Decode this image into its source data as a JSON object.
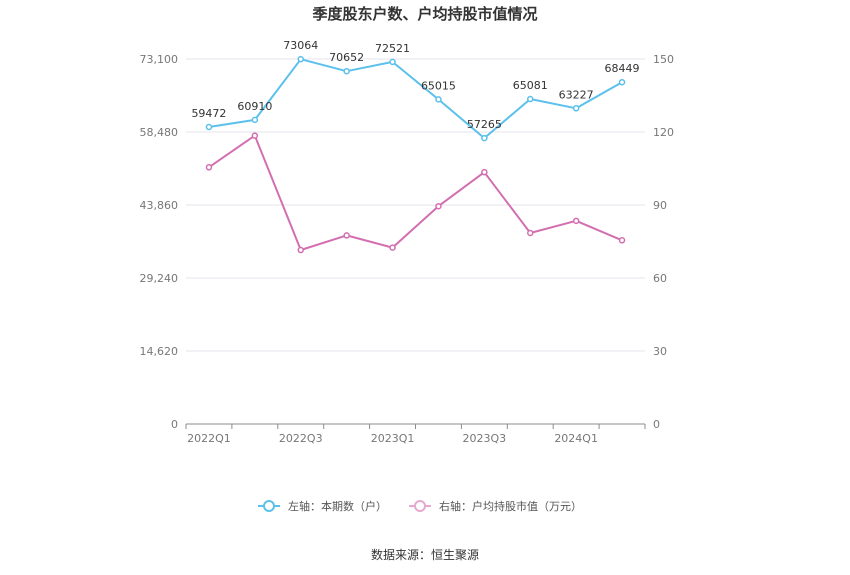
{
  "chart_data": {
    "type": "line",
    "title": "季度股东户数、户均持股市值情况",
    "categories": [
      "2022Q1",
      "2022Q2",
      "2022Q3",
      "2022Q4",
      "2023Q1",
      "2023Q2",
      "2023Q3",
      "2023Q4",
      "2024Q1",
      "2024Q2"
    ],
    "x_tick_labels": [
      "2022Q1",
      "2022Q3",
      "2023Q1",
      "2023Q3",
      "2024Q1"
    ],
    "left_axis": {
      "ylim": [
        0,
        73100
      ],
      "ticks": [
        "0",
        "14,620",
        "29,240",
        "43,860",
        "58,480",
        "73,100"
      ]
    },
    "right_axis": {
      "ylim": [
        0,
        150
      ],
      "ticks": [
        "0",
        "30",
        "60",
        "90",
        "120",
        "150"
      ]
    },
    "series": [
      {
        "name": "左轴：本期数（户）",
        "axis": "left",
        "color": "#5bc0eb",
        "values": [
          59472,
          60910,
          73064,
          70652,
          72521,
          65015,
          57265,
          65081,
          63227,
          68449
        ],
        "labels": [
          "59472",
          "60910",
          "73064",
          "70652",
          "72521",
          "65015",
          "57265",
          "65081",
          "63227",
          "68449"
        ]
      },
      {
        "name": "右轴：户均持股市值（万元）",
        "axis": "right",
        "color": "#d36fb0",
        "values": [
          105.5,
          118.5,
          71.5,
          77.5,
          72.5,
          89.5,
          103.5,
          78.5,
          83.5,
          75.5
        ]
      }
    ],
    "grid": true,
    "legend_position": "bottom"
  },
  "footer": {
    "source": "数据来源：恒生聚源"
  }
}
